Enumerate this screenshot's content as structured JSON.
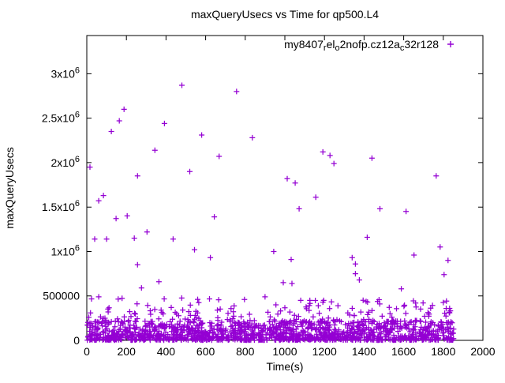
{
  "chart_data": {
    "type": "scatter",
    "title": "maxQueryUsecs vs Time for qp500.L4",
    "xlabel": "Time(s)",
    "ylabel": "maxQueryUsecs",
    "xlim": [
      0,
      2000
    ],
    "ylim": [
      0,
      3430000
    ],
    "grid": false,
    "legend_position": "top-right-inside",
    "point_color": "#9400d3",
    "marker": "plus",
    "x_ticks": [
      {
        "v": 0,
        "label": "0"
      },
      {
        "v": 200,
        "label": "200"
      },
      {
        "v": 400,
        "label": "400"
      },
      {
        "v": 600,
        "label": "600"
      },
      {
        "v": 800,
        "label": "800"
      },
      {
        "v": 1000,
        "label": "1000"
      },
      {
        "v": 1200,
        "label": "1200"
      },
      {
        "v": 1400,
        "label": "1400"
      },
      {
        "v": 1600,
        "label": "1600"
      },
      {
        "v": 1800,
        "label": "1800"
      },
      {
        "v": 2000,
        "label": "2000"
      }
    ],
    "y_ticks": [
      {
        "v": 0,
        "label": "0"
      },
      {
        "v": 500000,
        "label": "500000"
      },
      {
        "v": 1000000,
        "label": "1x10^6"
      },
      {
        "v": 1500000,
        "label": "1.5x10^6"
      },
      {
        "v": 2000000,
        "label": "2x10^6"
      },
      {
        "v": 2500000,
        "label": "2.5x10^6"
      },
      {
        "v": 3000000,
        "label": "3x10^6"
      }
    ],
    "legend": {
      "marker": "+",
      "parts": [
        {
          "text": "my8407"
        },
        {
          "text": "r",
          "sub": true
        },
        {
          "text": "el"
        },
        {
          "text": "o",
          "sub": true
        },
        {
          "text": "2nofp.cz12a"
        },
        {
          "text": "c",
          "sub": true
        },
        {
          "text": "32r128"
        }
      ]
    },
    "series": [
      {
        "name": "my8407_rel_o2nofp.cz12a_c32r128",
        "outlier_points": [
          [
            16,
            1950000
          ],
          [
            40,
            1140000
          ],
          [
            60,
            1570000
          ],
          [
            60,
            490000
          ],
          [
            84,
            1630000
          ],
          [
            100,
            1140000
          ],
          [
            124,
            2350000
          ],
          [
            148,
            1370000
          ],
          [
            164,
            2470000
          ],
          [
            188,
            2600000
          ],
          [
            204,
            1400000
          ],
          [
            240,
            1150000
          ],
          [
            256,
            1850000
          ],
          [
            256,
            850000
          ],
          [
            276,
            590000
          ],
          [
            304,
            1220000
          ],
          [
            344,
            2140000
          ],
          [
            364,
            660000
          ],
          [
            392,
            2440000
          ],
          [
            436,
            1140000
          ],
          [
            480,
            2870000
          ],
          [
            520,
            1900000
          ],
          [
            544,
            1020000
          ],
          [
            580,
            2310000
          ],
          [
            624,
            930000
          ],
          [
            644,
            1390000
          ],
          [
            668,
            2070000
          ],
          [
            756,
            2800000
          ],
          [
            796,
            460000
          ],
          [
            836,
            2280000
          ],
          [
            900,
            490000
          ],
          [
            944,
            1000000
          ],
          [
            992,
            650000
          ],
          [
            1012,
            1820000
          ],
          [
            1032,
            910000
          ],
          [
            1036,
            640000
          ],
          [
            1052,
            1770000
          ],
          [
            1072,
            1480000
          ],
          [
            1080,
            450000
          ],
          [
            1156,
            1610000
          ],
          [
            1192,
            2120000
          ],
          [
            1192,
            430000
          ],
          [
            1228,
            2080000
          ],
          [
            1248,
            1990000
          ],
          [
            1268,
            390000
          ],
          [
            1340,
            930000
          ],
          [
            1356,
            860000
          ],
          [
            1356,
            750000
          ],
          [
            1376,
            680000
          ],
          [
            1416,
            1160000
          ],
          [
            1440,
            2050000
          ],
          [
            1480,
            1480000
          ],
          [
            1588,
            580000
          ],
          [
            1612,
            1450000
          ],
          [
            1652,
            960000
          ],
          [
            1764,
            1850000
          ],
          [
            1784,
            1050000
          ],
          [
            1804,
            740000
          ],
          [
            1824,
            900000
          ],
          [
            1832,
            360000
          ],
          [
            1832,
            310000
          ]
        ],
        "dense_band": {
          "description": "dense cloud of samples along the bottom of the plot",
          "count": 1500,
          "x_min": 2,
          "x_max": 1860,
          "y_min": 3000,
          "y_core_max": 210000,
          "tail_fraction": 0.12,
          "y_tail_max": 480000,
          "seed": 7
        }
      }
    ]
  }
}
